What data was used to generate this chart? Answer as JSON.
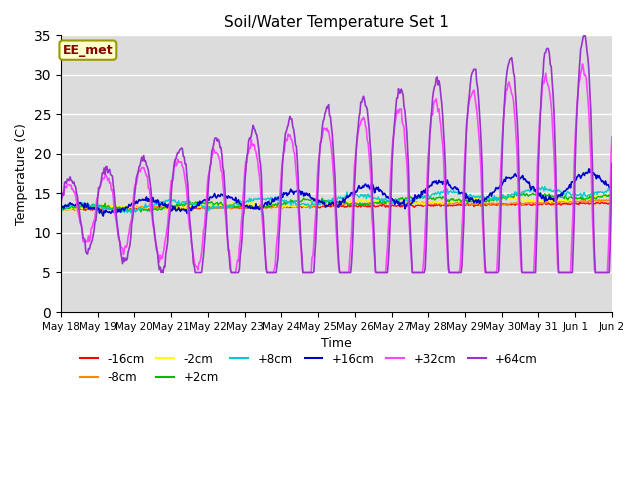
{
  "title": "Soil/Water Temperature Set 1",
  "xlabel": "Time",
  "ylabel": "Temperature (C)",
  "ylim": [
    0,
    35
  ],
  "yticks": [
    0,
    5,
    10,
    15,
    20,
    25,
    30,
    35
  ],
  "background_color": "#dcdcdc",
  "annotation_text": "EE_met",
  "annotation_box_color": "#ffffcc",
  "annotation_border_color": "#999900",
  "annotation_text_color": "#880000",
  "series": [
    {
      "label": "-16cm",
      "color": "#ff0000"
    },
    {
      "label": "-8cm",
      "color": "#ff8800"
    },
    {
      "label": "-2cm",
      "color": "#ffff00"
    },
    {
      "label": "+2cm",
      "color": "#00bb00"
    },
    {
      "label": "+8cm",
      "color": "#00cccc"
    },
    {
      "label": "+16cm",
      "color": "#0000cc"
    },
    {
      "label": "+32cm",
      "color": "#ff44ff"
    },
    {
      "label": "+64cm",
      "color": "#9933cc"
    }
  ],
  "tick_labels": [
    "May 18",
    "May 19",
    "May 20",
    "May 21",
    "May 22",
    "May 23",
    "May 24",
    "May 25",
    "May 26",
    "May 27",
    "May 28",
    "May 29",
    "May 30",
    "May 31",
    "Jun 1",
    "Jun 2"
  ],
  "figsize": [
    6.4,
    4.8
  ],
  "dpi": 100
}
